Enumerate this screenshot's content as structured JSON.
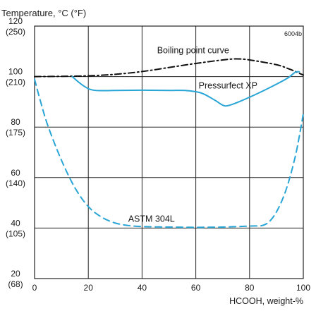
{
  "chart_data": {
    "type": "line",
    "ylabel": "Temperature, °C (°F)",
    "xlabel": "HCOOH, weight-%",
    "figure_code": "6004b",
    "xlim": [
      0,
      100
    ],
    "ylim": [
      20,
      120
    ],
    "grid": true,
    "x_ticks": [
      "0",
      "20",
      "40",
      "60",
      "80",
      "100"
    ],
    "y_ticks": [
      {
        "value": 120,
        "c": "120",
        "f": "(250)"
      },
      {
        "value": 100,
        "c": "100",
        "f": "(210)"
      },
      {
        "value": 80,
        "c": "80",
        "f": "(175)"
      },
      {
        "value": 60,
        "c": "60",
        "f": "(140)"
      },
      {
        "value": 40,
        "c": "40",
        "f": "(105)"
      },
      {
        "value": 20,
        "c": "20",
        "f": "(68)"
      }
    ],
    "series": [
      {
        "name": "Boiling point curve",
        "style": "dash-dot",
        "color": "#111111",
        "points": [
          [
            0,
            100
          ],
          [
            10,
            100.1
          ],
          [
            20,
            100.3
          ],
          [
            30,
            100.9
          ],
          [
            40,
            102
          ],
          [
            50,
            103.6
          ],
          [
            60,
            105.2
          ],
          [
            70,
            106.6
          ],
          [
            75,
            107
          ],
          [
            80,
            106.6
          ],
          [
            90,
            104.7
          ],
          [
            95,
            102.9
          ],
          [
            100,
            100.6
          ]
        ]
      },
      {
        "name": "Pressurfect XP",
        "style": "solid",
        "color": "#2aa6d6",
        "points": [
          [
            14,
            100
          ],
          [
            18,
            96.5
          ],
          [
            22,
            94.6
          ],
          [
            30,
            94.5
          ],
          [
            40,
            94.6
          ],
          [
            50,
            94.5
          ],
          [
            56,
            94.5
          ],
          [
            62,
            93.5
          ],
          [
            67,
            90.7
          ],
          [
            70,
            88.7
          ],
          [
            72,
            88.5
          ],
          [
            76,
            90
          ],
          [
            82,
            92.8
          ],
          [
            88,
            95.9
          ],
          [
            94,
            99.3
          ],
          [
            97,
            101.7
          ],
          [
            98.5,
            101.9
          ]
        ]
      },
      {
        "name": "ASTM 304L",
        "style": "dashed",
        "color": "#2aa6d6",
        "points": [
          [
            0,
            99
          ],
          [
            2,
            91
          ],
          [
            5,
            80.4
          ],
          [
            10,
            66.9
          ],
          [
            15,
            56
          ],
          [
            20,
            48.5
          ],
          [
            25,
            44.3
          ],
          [
            30,
            42
          ],
          [
            35,
            41
          ],
          [
            40,
            40.6
          ],
          [
            50,
            40.4
          ],
          [
            60,
            40.3
          ],
          [
            70,
            40.4
          ],
          [
            80,
            40.8
          ],
          [
            85,
            41.1
          ],
          [
            88,
            43.3
          ],
          [
            91,
            48.4
          ],
          [
            94,
            56.5
          ],
          [
            97,
            68.3
          ],
          [
            99,
            79.2
          ],
          [
            100,
            85.4
          ]
        ]
      }
    ],
    "annotations": [
      {
        "series": "Boiling point curve",
        "text": "Boiling point curve",
        "x": 59,
        "y": 109.2
      },
      {
        "series": "Pressurfect XP",
        "text": "Pressurfect XP",
        "x": 72,
        "y": 95.3
      },
      {
        "series": "ASTM 304L",
        "text": "ASTM 304L",
        "x": 43.5,
        "y": 42.5
      }
    ]
  }
}
